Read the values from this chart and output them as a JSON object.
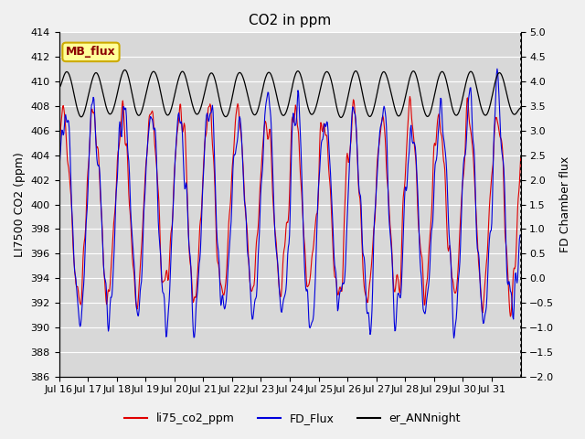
{
  "title": "CO2 in ppm",
  "ylabel_left": "LI7500 CO2 (ppm)",
  "ylabel_right": "FD Chamber flux",
  "ylim_left": [
    386,
    414
  ],
  "ylim_right": [
    -2.0,
    5.0
  ],
  "yticks_left": [
    386,
    388,
    390,
    392,
    394,
    396,
    398,
    400,
    402,
    404,
    406,
    408,
    410,
    412,
    414
  ],
  "yticks_right": [
    -2.0,
    -1.5,
    -1.0,
    -0.5,
    0.0,
    0.5,
    1.0,
    1.5,
    2.0,
    2.5,
    3.0,
    3.5,
    4.0,
    4.5,
    5.0
  ],
  "xticklabels": [
    "Jul 16",
    "Jul 17",
    "Jul 18",
    "Jul 19",
    "Jul 20",
    "Jul 21",
    "Jul 22",
    "Jul 23",
    "Jul 24",
    "Jul 25",
    "Jul 26",
    "Jul 27",
    "Jul 28",
    "Jul 29",
    "Jul 30",
    "Jul 31"
  ],
  "color_red": "#e00000",
  "color_blue": "#0000dd",
  "color_black": "#000000",
  "legend_labels": [
    "li75_co2_ppm",
    "FD_Flux",
    "er_ANNnight"
  ],
  "mb_flux_label": "MB_flux",
  "background_color": "#d8d8d8",
  "fig_facecolor": "#f0f0f0",
  "title_fontsize": 11,
  "axis_label_fontsize": 9,
  "tick_fontsize": 8,
  "legend_fontsize": 9
}
